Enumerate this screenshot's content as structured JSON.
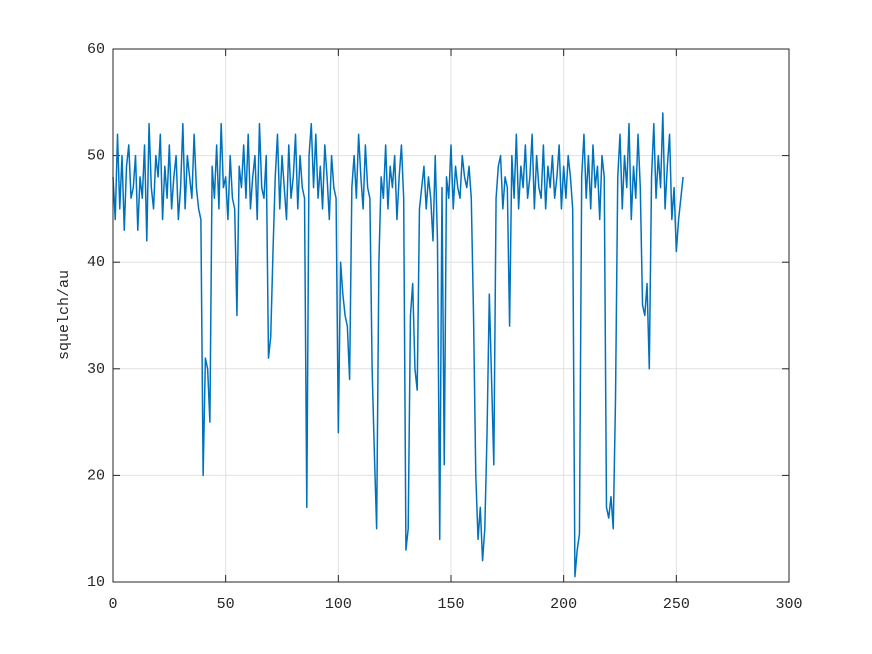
{
  "chart_data": {
    "type": "line",
    "y_label": "squelch/au",
    "color": "#0072bd",
    "grid": true,
    "xlim": [
      0,
      300
    ],
    "xticks": [
      0,
      50,
      100,
      150,
      200,
      250,
      300
    ],
    "ylim": [
      10,
      60
    ],
    "yticks": [
      10,
      20,
      30,
      40,
      50,
      60
    ],
    "x": [
      0,
      1,
      2,
      3,
      4,
      5,
      6,
      7,
      8,
      9,
      10,
      11,
      12,
      13,
      14,
      15,
      16,
      17,
      18,
      19,
      20,
      21,
      22,
      23,
      24,
      25,
      26,
      27,
      28,
      29,
      30,
      31,
      32,
      33,
      34,
      35,
      36,
      37,
      38,
      39,
      40,
      41,
      42,
      43,
      44,
      45,
      46,
      47,
      48,
      49,
      50,
      51,
      52,
      53,
      54,
      55,
      56,
      57,
      58,
      59,
      60,
      61,
      62,
      63,
      64,
      65,
      66,
      67,
      68,
      69,
      70,
      71,
      72,
      73,
      74,
      75,
      76,
      77,
      78,
      79,
      80,
      81,
      82,
      83,
      84,
      85,
      86,
      87,
      88,
      89,
      90,
      91,
      92,
      93,
      94,
      95,
      96,
      97,
      98,
      99,
      100,
      101,
      102,
      103,
      104,
      105,
      106,
      107,
      108,
      109,
      110,
      111,
      112,
      113,
      114,
      115,
      116,
      117,
      118,
      119,
      120,
      121,
      122,
      123,
      124,
      125,
      126,
      127,
      128,
      129,
      130,
      131,
      132,
      133,
      134,
      135,
      136,
      137,
      138,
      139,
      140,
      141,
      142,
      143,
      144,
      145,
      146,
      147,
      148,
      149,
      150,
      151,
      152,
      153,
      154,
      155,
      156,
      157,
      158,
      159,
      160,
      161,
      162,
      163,
      164,
      165,
      166,
      167,
      168,
      169,
      170,
      171,
      172,
      173,
      174,
      175,
      176,
      177,
      178,
      179,
      180,
      181,
      182,
      183,
      184,
      185,
      186,
      187,
      188,
      189,
      190,
      191,
      192,
      193,
      194,
      195,
      196,
      197,
      198,
      199,
      200,
      201,
      202,
      203,
      204,
      205,
      206,
      207,
      208,
      209,
      210,
      211,
      212,
      213,
      214,
      215,
      216,
      217,
      218,
      219,
      220,
      221,
      222,
      223,
      224,
      225,
      226,
      227,
      228,
      229,
      230,
      231,
      232,
      233,
      234,
      235,
      236,
      237,
      238,
      239,
      240,
      241,
      242,
      243,
      244,
      245,
      246,
      247,
      248,
      249,
      250,
      251,
      252,
      253
    ],
    "values": [
      48,
      44,
      52,
      45,
      50,
      43,
      49,
      51,
      46,
      47,
      50,
      43,
      48,
      46,
      51,
      42,
      53,
      47,
      45,
      50,
      48,
      52,
      44,
      49,
      46,
      51,
      45,
      48,
      50,
      44,
      47,
      53,
      45,
      50,
      48,
      46,
      52,
      47,
      45,
      44,
      20,
      31,
      30,
      25,
      49,
      46,
      51,
      45,
      53,
      47,
      48,
      44,
      50,
      46,
      45,
      35,
      49,
      47,
      51,
      46,
      52,
      45,
      48,
      50,
      44,
      53,
      47,
      46,
      50,
      31,
      33,
      41,
      48,
      52,
      45,
      50,
      47,
      44,
      51,
      46,
      48,
      52,
      45,
      50,
      47,
      46,
      17,
      50,
      53,
      47,
      52,
      46,
      49,
      45,
      51,
      48,
      44,
      50,
      47,
      46,
      24,
      40,
      37,
      35,
      34,
      29,
      47,
      50,
      46,
      52,
      48,
      45,
      51,
      47,
      46,
      30,
      22,
      15,
      40,
      48,
      46,
      51,
      45,
      49,
      47,
      50,
      44,
      48,
      51,
      46,
      13,
      15,
      35,
      38,
      30,
      28,
      45,
      47,
      49,
      45,
      48,
      46,
      42,
      50,
      42,
      14,
      47,
      21,
      48,
      46,
      51,
      45,
      49,
      47,
      46,
      50,
      48,
      47,
      49,
      46,
      35,
      20,
      14,
      17,
      12,
      15,
      24,
      37,
      29,
      21,
      46,
      49,
      50,
      45,
      48,
      47,
      34,
      50,
      46,
      52,
      45,
      49,
      47,
      51,
      46,
      48,
      52,
      45,
      50,
      47,
      46,
      51,
      45,
      49,
      47,
      50,
      46,
      48,
      51,
      45,
      49,
      46,
      50,
      48,
      45,
      10.5,
      13,
      14.5,
      48,
      52,
      46,
      50,
      45,
      51,
      47,
      49,
      44,
      50,
      48,
      17,
      16,
      18,
      15,
      27,
      48,
      52,
      45,
      50,
      47,
      53,
      44,
      49,
      46,
      52,
      47,
      36,
      35,
      38,
      30,
      48,
      53,
      46,
      50,
      47,
      54,
      45,
      49,
      52,
      44,
      47,
      41,
      44,
      46,
      48
    ]
  }
}
